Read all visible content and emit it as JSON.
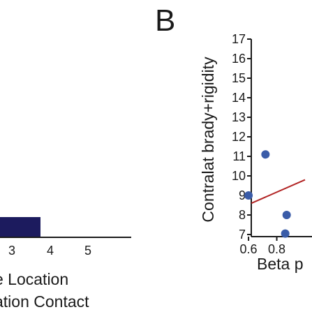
{
  "figure": {
    "panel_b_letter": "B"
  },
  "chart_data": [
    {
      "type": "bar",
      "panel": "A (partially visible)",
      "title": "",
      "categories": [
        "3",
        "4",
        "5"
      ],
      "values": [
        1,
        null,
        null
      ],
      "xlabel_lines": [
        "e Location",
        "ation Contact"
      ],
      "ylabel": "",
      "colors": {
        "bar": "#1c1b5e",
        "axis": "#1a1a1a"
      }
    },
    {
      "type": "scatter",
      "panel": "B",
      "title": "",
      "xlabel": "Beta p",
      "ylabel": "Contralat brady+rigidity",
      "xlim": [
        0.57,
        1.0
      ],
      "ylim": [
        7,
        17
      ],
      "x_ticks": [
        "0.6",
        "0.8"
      ],
      "x_tick_values": [
        0.6,
        0.8
      ],
      "y_ticks": [
        "7",
        "8",
        "9",
        "10",
        "11",
        "12",
        "13",
        "14",
        "15",
        "16",
        "17"
      ],
      "y_tick_values": [
        7,
        8,
        9,
        10,
        11,
        12,
        13,
        14,
        15,
        16,
        17
      ],
      "points": [
        {
          "x": 0.6,
          "y": 9.0
        },
        {
          "x": 0.72,
          "y": 11.1
        },
        {
          "x": 0.87,
          "y": 8.0
        },
        {
          "x": 0.86,
          "y": 7.05
        }
      ],
      "fit_line": {
        "x": [
          0.62,
          1.0
        ],
        "y": [
          8.6,
          9.8
        ]
      },
      "colors": {
        "point": "#3a5ca8",
        "fit_line": "#b22424",
        "axis": "#1a1a1a"
      }
    }
  ]
}
